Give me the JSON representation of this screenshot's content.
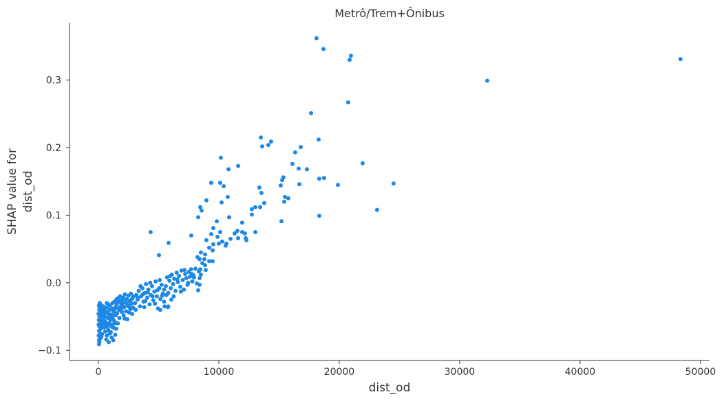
{
  "chart_data": {
    "type": "scatter",
    "title": "Metrô/Trem+Ônibus",
    "xlabel": "dist_od",
    "ylabel": [
      "SHAP value for",
      "dist_od"
    ],
    "xlim": [
      -2400,
      50750
    ],
    "ylim": [
      -0.115,
      0.385
    ],
    "grid": false,
    "point_color": "#1E88E5",
    "axis_color": "#333333",
    "xticks": [
      {
        "value": 0,
        "label": "0"
      },
      {
        "value": 10000,
        "label": "10000"
      },
      {
        "value": 20000,
        "label": "20000"
      },
      {
        "value": 30000,
        "label": "30000"
      },
      {
        "value": 40000,
        "label": "40000"
      },
      {
        "value": 50000,
        "label": "50000"
      }
    ],
    "yticks": [
      {
        "value": -0.1,
        "label": "−0.1"
      },
      {
        "value": 0.0,
        "label": "0.0"
      },
      {
        "value": 0.1,
        "label": "0.1"
      },
      {
        "value": 0.2,
        "label": "0.2"
      },
      {
        "value": 0.3,
        "label": "0.3"
      }
    ],
    "points": [
      [
        18110,
        0.362
      ],
      [
        18690,
        0.346
      ],
      [
        20970,
        0.336
      ],
      [
        20860,
        0.33
      ],
      [
        48340,
        0.331
      ],
      [
        32290,
        0.299
      ],
      [
        17660,
        0.251
      ],
      [
        20740,
        0.267
      ],
      [
        13490,
        0.215
      ],
      [
        14340,
        0.209
      ],
      [
        13600,
        0.202
      ],
      [
        14110,
        0.204
      ],
      [
        18290,
        0.212
      ],
      [
        16800,
        0.201
      ],
      [
        16340,
        0.193
      ],
      [
        11600,
        0.173
      ],
      [
        10800,
        0.168
      ],
      [
        10170,
        0.185
      ],
      [
        21940,
        0.177
      ],
      [
        16110,
        0.176
      ],
      [
        17310,
        0.168
      ],
      [
        16630,
        0.169
      ],
      [
        15370,
        0.156
      ],
      [
        15260,
        0.152
      ],
      [
        18740,
        0.155
      ],
      [
        18340,
        0.154
      ],
      [
        16690,
        0.146
      ],
      [
        15140,
        0.144
      ],
      [
        19890,
        0.145
      ],
      [
        24510,
        0.147
      ],
      [
        9370,
        0.148
      ],
      [
        10110,
        0.148
      ],
      [
        10400,
        0.143
      ],
      [
        13370,
        0.141
      ],
      [
        13540,
        0.133
      ],
      [
        10740,
        0.127
      ],
      [
        10230,
        0.119
      ],
      [
        8970,
        0.122
      ],
      [
        15490,
        0.127
      ],
      [
        15770,
        0.125
      ],
      [
        15430,
        0.12
      ],
      [
        13770,
        0.118
      ],
      [
        13430,
        0.112
      ],
      [
        13030,
        0.112
      ],
      [
        12740,
        0.109
      ],
      [
        12740,
        0.101
      ],
      [
        18340,
        0.099
      ],
      [
        23140,
        0.108
      ],
      [
        8460,
        0.112
      ],
      [
        8570,
        0.107
      ],
      [
        8290,
        0.097
      ],
      [
        10860,
        0.097
      ],
      [
        15200,
        0.091
      ],
      [
        9830,
        0.091
      ],
      [
        11940,
        0.089
      ],
      [
        9540,
        0.081
      ],
      [
        10110,
        0.075
      ],
      [
        11540,
        0.077
      ],
      [
        11940,
        0.075
      ],
      [
        13030,
        0.075
      ],
      [
        11310,
        0.073
      ],
      [
        9370,
        0.072
      ],
      [
        4340,
        0.075
      ],
      [
        7710,
        0.07
      ],
      [
        11600,
        0.066
      ],
      [
        12230,
        0.066
      ],
      [
        12170,
        0.073
      ],
      [
        10970,
        0.065
      ],
      [
        9890,
        0.068
      ],
      [
        8970,
        0.063
      ],
      [
        12290,
        0.063
      ],
      [
        5830,
        0.059
      ],
      [
        10290,
        0.061
      ],
      [
        9540,
        0.057
      ],
      [
        10000,
        0.058
      ],
      [
        10630,
        0.058
      ],
      [
        10570,
        0.055
      ],
      [
        9200,
        0.052
      ],
      [
        9490,
        0.048
      ],
      [
        8510,
        0.045
      ],
      [
        8860,
        0.042
      ],
      [
        5030,
        0.041
      ],
      [
        8230,
        0.038
      ],
      [
        8400,
        0.035
      ],
      [
        8800,
        0.035
      ],
      [
        9200,
        0.032
      ],
      [
        9490,
        0.032
      ],
      [
        8630,
        0.029
      ],
      [
        8860,
        0.026
      ],
      [
        8060,
        0.021
      ],
      [
        8460,
        0.02
      ],
      [
        8910,
        0.019
      ],
      [
        8340,
        0.017
      ],
      [
        8510,
        0.012
      ],
      [
        7940,
        0.008
      ],
      [
        8400,
        0.007
      ],
      [
        8170,
        -0.001
      ],
      [
        8400,
        -0.003
      ],
      [
        8290,
        -0.011
      ],
      [
        5140,
        -0.04
      ],
      [
        5770,
        -0.036
      ],
      [
        50,
        -0.091
      ],
      [
        80,
        -0.088
      ],
      [
        120,
        -0.083
      ],
      [
        30,
        -0.078
      ],
      [
        160,
        -0.075
      ],
      [
        60,
        -0.071
      ],
      [
        200,
        -0.068
      ],
      [
        100,
        -0.065
      ],
      [
        20,
        -0.062
      ],
      [
        140,
        -0.06
      ],
      [
        250,
        -0.058
      ],
      [
        40,
        -0.055
      ],
      [
        180,
        -0.053
      ],
      [
        90,
        -0.05
      ],
      [
        300,
        -0.048
      ],
      [
        10,
        -0.046
      ],
      [
        220,
        -0.044
      ],
      [
        130,
        -0.042
      ],
      [
        70,
        -0.04
      ],
      [
        260,
        -0.038
      ],
      [
        150,
        -0.036
      ],
      [
        40,
        -0.034
      ],
      [
        190,
        -0.032
      ],
      [
        110,
        -0.03
      ],
      [
        330,
        -0.046
      ],
      [
        350,
        -0.052
      ],
      [
        380,
        -0.06
      ],
      [
        400,
        -0.042
      ],
      [
        420,
        -0.035
      ],
      [
        450,
        -0.055
      ],
      [
        480,
        -0.066
      ],
      [
        500,
        -0.04
      ],
      [
        520,
        -0.05
      ],
      [
        560,
        -0.072
      ],
      [
        580,
        -0.045
      ],
      [
        600,
        -0.058
      ],
      [
        60,
        -0.085
      ],
      [
        240,
        -0.08
      ],
      [
        300,
        -0.076
      ],
      [
        170,
        -0.057
      ],
      [
        90,
        -0.047
      ],
      [
        210,
        -0.041
      ],
      [
        270,
        -0.052
      ],
      [
        330,
        -0.064
      ],
      [
        360,
        -0.037
      ],
      [
        140,
        -0.039
      ],
      [
        80,
        -0.056
      ],
      [
        440,
        -0.048
      ],
      [
        510,
        -0.062
      ],
      [
        550,
        -0.038
      ],
      [
        650,
        -0.084
      ],
      [
        700,
        -0.078
      ],
      [
        720,
        -0.065
      ],
      [
        760,
        -0.052
      ],
      [
        800,
        -0.045
      ],
      [
        820,
        -0.07
      ],
      [
        860,
        -0.088
      ],
      [
        900,
        -0.06
      ],
      [
        930,
        -0.04
      ],
      [
        960,
        -0.033
      ],
      [
        1000,
        -0.055
      ],
      [
        1030,
        -0.073
      ],
      [
        1060,
        -0.047
      ],
      [
        1100,
        -0.081
      ],
      [
        1120,
        -0.038
      ],
      [
        1150,
        -0.062
      ],
      [
        1180,
        -0.03
      ],
      [
        1200,
        -0.05
      ],
      [
        1230,
        -0.085
      ],
      [
        1260,
        -0.042
      ],
      [
        1300,
        -0.067
      ],
      [
        1330,
        -0.028
      ],
      [
        1360,
        -0.058
      ],
      [
        1400,
        -0.077
      ],
      [
        1430,
        -0.036
      ],
      [
        1460,
        -0.048
      ],
      [
        1490,
        -0.025
      ],
      [
        680,
        -0.043
      ],
      [
        740,
        -0.036
      ],
      [
        880,
        -0.05
      ],
      [
        950,
        -0.075
      ],
      [
        1080,
        -0.065
      ],
      [
        1250,
        -0.055
      ],
      [
        1380,
        -0.045
      ],
      [
        1420,
        -0.06
      ],
      [
        780,
        -0.062
      ],
      [
        1140,
        -0.052
      ],
      [
        1320,
        -0.04
      ],
      [
        1480,
        -0.068
      ],
      [
        700,
        -0.03
      ],
      [
        1520,
        -0.032
      ],
      [
        1560,
        -0.045
      ],
      [
        1600,
        -0.023
      ],
      [
        1650,
        -0.038
      ],
      [
        1700,
        -0.028
      ],
      [
        1750,
        -0.052
      ],
      [
        1800,
        -0.02
      ],
      [
        1850,
        -0.035
      ],
      [
        1900,
        -0.026
      ],
      [
        1950,
        -0.043
      ],
      [
        2000,
        -0.031
      ],
      [
        2050,
        -0.022
      ],
      [
        2100,
        -0.048
      ],
      [
        2150,
        -0.036
      ],
      [
        2200,
        -0.017
      ],
      [
        2250,
        -0.029
      ],
      [
        2300,
        -0.042
      ],
      [
        2350,
        -0.024
      ],
      [
        2400,
        -0.054
      ],
      [
        2450,
        -0.034
      ],
      [
        2500,
        -0.019
      ],
      [
        2550,
        -0.044
      ],
      [
        2600,
        -0.027
      ],
      [
        2650,
        -0.039
      ],
      [
        2700,
        -0.016
      ],
      [
        2750,
        -0.031
      ],
      [
        2800,
        -0.046
      ],
      [
        2850,
        -0.022
      ],
      [
        2900,
        -0.037
      ],
      [
        2950,
        -0.02
      ],
      [
        1620,
        -0.06
      ],
      [
        1720,
        -0.04
      ],
      [
        1880,
        -0.03
      ],
      [
        2020,
        -0.025
      ],
      [
        2180,
        -0.053
      ],
      [
        2380,
        -0.031
      ],
      [
        2580,
        -0.036
      ],
      [
        2780,
        -0.024
      ],
      [
        1580,
        -0.029
      ],
      [
        1980,
        -0.037
      ],
      [
        3050,
        -0.03
      ],
      [
        3150,
        -0.018
      ],
      [
        3250,
        -0.025
      ],
      [
        3350,
        -0.012
      ],
      [
        3450,
        -0.035
      ],
      [
        3550,
        -0.02
      ],
      [
        3650,
        -0.008
      ],
      [
        3750,
        -0.028
      ],
      [
        3850,
        -0.015
      ],
      [
        3950,
        -0.002
      ],
      [
        4050,
        -0.022
      ],
      [
        4150,
        -0.01
      ],
      [
        4250,
        -0.032
      ],
      [
        4350,
        -0.018
      ],
      [
        4450,
        -0.005
      ],
      [
        4550,
        -0.026
      ],
      [
        4650,
        -0.013
      ],
      [
        4750,
        0.002
      ],
      [
        4850,
        -0.02
      ],
      [
        4950,
        -0.038
      ],
      [
        5050,
        -0.008
      ],
      [
        5150,
        -0.024
      ],
      [
        5250,
        -0.003
      ],
      [
        5350,
        -0.016
      ],
      [
        5450,
        -0.028
      ],
      [
        3100,
        -0.04
      ],
      [
        3300,
        -0.022
      ],
      [
        3500,
        -0.005
      ],
      [
        3700,
        -0.017
      ],
      [
        3900,
        -0.027
      ],
      [
        4100,
        -0.014
      ],
      [
        4300,
        0.0
      ],
      [
        4500,
        -0.02
      ],
      [
        4700,
        -0.031
      ],
      [
        4900,
        -0.011
      ],
      [
        5100,
        0.004
      ],
      [
        5300,
        -0.019
      ],
      [
        5500,
        -0.035
      ],
      [
        5450,
        -0.01
      ],
      [
        3800,
        -0.036
      ],
      [
        5600,
        -0.005
      ],
      [
        5700,
        0.008
      ],
      [
        5800,
        -0.015
      ],
      [
        5900,
        0.003
      ],
      [
        6000,
        -0.008
      ],
      [
        6100,
        0.012
      ],
      [
        6200,
        -0.002
      ],
      [
        6300,
        0.006
      ],
      [
        6400,
        -0.012
      ],
      [
        6500,
        0.015
      ],
      [
        6600,
        0.001
      ],
      [
        6700,
        0.01
      ],
      [
        6800,
        -0.006
      ],
      [
        6900,
        0.018
      ],
      [
        7000,
        0.004
      ],
      [
        7100,
        -0.01
      ],
      [
        7200,
        0.013
      ],
      [
        7300,
        0.007
      ],
      [
        7400,
        -0.003
      ],
      [
        7500,
        0.016
      ],
      [
        7600,
        0.009
      ],
      [
        7700,
        0.02
      ],
      [
        7800,
        0.002
      ],
      [
        7900,
        0.011
      ],
      [
        5650,
        -0.018
      ],
      [
        5950,
        0.01
      ],
      [
        6250,
        -0.02
      ],
      [
        6550,
        0.005
      ],
      [
        6850,
        -0.013
      ],
      [
        7150,
        0.019
      ],
      [
        7450,
        0.0
      ],
      [
        7750,
        0.013
      ],
      [
        6050,
        -0.025
      ],
      [
        5800,
        -0.035
      ]
    ]
  }
}
